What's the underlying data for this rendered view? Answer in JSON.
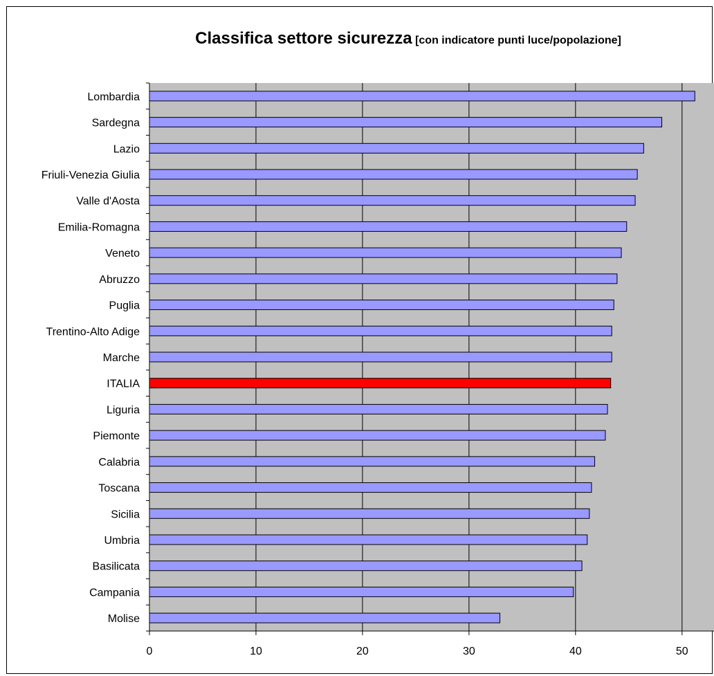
{
  "chart_data": {
    "type": "bar",
    "orientation": "horizontal",
    "title": "Classifica settore sicurezza",
    "subtitle": "[con indicatore punti luce/popolazione]",
    "categories": [
      "Lombardia",
      "Sardegna",
      "Lazio",
      "Friuli-Venezia Giulia",
      "Valle d'Aosta",
      "Emilia-Romagna",
      "Veneto",
      "Abruzzo",
      "Puglia",
      "Trentino-Alto Adige",
      "Marche",
      "ITALIA",
      "Liguria",
      "Piemonte",
      "Calabria",
      "Toscana",
      "Sicilia",
      "Umbria",
      "Basilicata",
      "Campania",
      "Molise"
    ],
    "values": [
      51.2,
      48.1,
      46.4,
      45.8,
      45.6,
      44.8,
      44.3,
      43.9,
      43.6,
      43.4,
      43.4,
      43.3,
      43.0,
      42.8,
      41.8,
      41.5,
      41.3,
      41.1,
      40.6,
      39.8,
      32.9
    ],
    "highlight": "ITALIA",
    "xlim": [
      0,
      53
    ],
    "xticks": [
      0,
      10,
      20,
      30,
      40,
      50
    ],
    "grid": true,
    "colors": {
      "bar": "#9999ff",
      "highlight_bar": "#ff0000",
      "plot_background": "#c0c0c0",
      "bar_border": "#000000"
    }
  }
}
